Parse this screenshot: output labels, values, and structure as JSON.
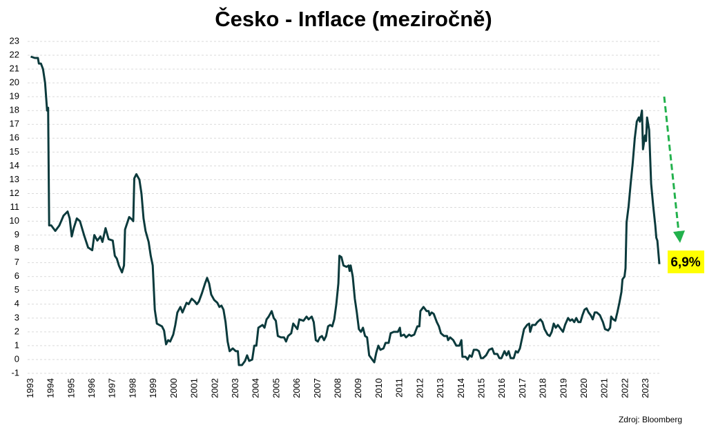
{
  "chart_data": {
    "type": "line",
    "title": "Česko - Inflace (meziročně)",
    "source": "Zdroj: Bloomberg",
    "annotation": "6,9%",
    "x": [
      1993.0,
      1993.2,
      1993.35,
      1993.4,
      1993.5,
      1993.6,
      1993.7,
      1993.8,
      1993.85,
      1993.9,
      1994.0,
      1994.2,
      1994.4,
      1994.6,
      1994.8,
      1994.9,
      1995.0,
      1995.1,
      1995.25,
      1995.4,
      1995.6,
      1995.8,
      1996.0,
      1996.1,
      1996.25,
      1996.4,
      1996.5,
      1996.65,
      1996.8,
      1997.0,
      1997.1,
      1997.2,
      1997.3,
      1997.45,
      1997.55,
      1997.6,
      1997.8,
      1997.95,
      1998.0,
      1998.05,
      1998.15,
      1998.3,
      1998.4,
      1998.5,
      1998.6,
      1998.75,
      1998.85,
      1998.95,
      1999.05,
      1999.15,
      1999.4,
      1999.5,
      1999.6,
      1999.7,
      1999.8,
      1999.95,
      2000.05,
      2000.15,
      2000.3,
      2000.4,
      2000.6,
      2000.7,
      2000.85,
      2001.0,
      2001.1,
      2001.2,
      2001.35,
      2001.5,
      2001.6,
      2001.7,
      2001.8,
      2001.95,
      2002.1,
      2002.2,
      2002.3,
      2002.4,
      2002.5,
      2002.6,
      2002.7,
      2002.85,
      2003.0,
      2003.1,
      2003.15,
      2003.3,
      2003.45,
      2003.55,
      2003.65,
      2003.8,
      2003.9,
      2004.0,
      2004.1,
      2004.3,
      2004.4,
      2004.5,
      2004.6,
      2004.75,
      2004.85,
      2004.95,
      2005.05,
      2005.2,
      2005.35,
      2005.45,
      2005.55,
      2005.7,
      2005.8,
      2005.9,
      2006.0,
      2006.1,
      2006.3,
      2006.45,
      2006.55,
      2006.7,
      2006.8,
      2006.9,
      2007.0,
      2007.1,
      2007.2,
      2007.3,
      2007.4,
      2007.5,
      2007.6,
      2007.7,
      2007.8,
      2007.9,
      2008.0,
      2008.05,
      2008.15,
      2008.25,
      2008.4,
      2008.5,
      2008.55,
      2008.6,
      2008.7,
      2008.8,
      2008.9,
      2009.0,
      2009.1,
      2009.2,
      2009.3,
      2009.4,
      2009.5,
      2009.65,
      2009.75,
      2009.85,
      2009.95,
      2010.05,
      2010.2,
      2010.3,
      2010.45,
      2010.55,
      2010.7,
      2010.9,
      2011.0,
      2011.05,
      2011.2,
      2011.3,
      2011.45,
      2011.55,
      2011.7,
      2011.85,
      2011.95,
      2012.0,
      2012.15,
      2012.3,
      2012.4,
      2012.45,
      2012.55,
      2012.65,
      2012.8,
      2012.9,
      2013.0,
      2013.15,
      2013.3,
      2013.35,
      2013.45,
      2013.6,
      2013.75,
      2013.9,
      2014.0,
      2014.05,
      2014.2,
      2014.3,
      2014.4,
      2014.5,
      2014.6,
      2014.75,
      2014.85,
      2014.95,
      2015.05,
      2015.2,
      2015.35,
      2015.5,
      2015.6,
      2015.75,
      2015.85,
      2015.95,
      2016.1,
      2016.2,
      2016.3,
      2016.4,
      2016.55,
      2016.65,
      2016.75,
      2016.85,
      2016.95,
      2017.05,
      2017.2,
      2017.3,
      2017.35,
      2017.45,
      2017.6,
      2017.7,
      2017.85,
      2017.95,
      2018.05,
      2018.2,
      2018.3,
      2018.4,
      2018.5,
      2018.6,
      2018.7,
      2018.85,
      2018.95,
      2019.05,
      2019.2,
      2019.3,
      2019.4,
      2019.5,
      2019.6,
      2019.7,
      2019.8,
      2019.9,
      2020.0,
      2020.1,
      2020.2,
      2020.3,
      2020.4,
      2020.5,
      2020.6,
      2020.75,
      2020.9,
      2021.0,
      2021.15,
      2021.25,
      2021.3,
      2021.4,
      2021.5,
      2021.6,
      2021.7,
      2021.8,
      2021.85,
      2021.95,
      2022.0,
      2022.05,
      2022.15,
      2022.25,
      2022.35,
      2022.45,
      2022.55,
      2022.65,
      2022.7,
      2022.8,
      2022.85,
      2022.95,
      2023.0,
      2023.05,
      2023.15,
      2023.25,
      2023.35,
      2023.45,
      2023.5,
      2023.55,
      2023.65
    ],
    "series": [
      {
        "color": "#0b3a3c",
        "values": [
          21.9,
          21.8,
          21.8,
          21.4,
          21.4,
          21.0,
          20.0,
          18.0,
          18.2,
          9.7,
          9.7,
          9.3,
          9.7,
          10.4,
          10.7,
          10.2,
          8.9,
          9.5,
          10.2,
          10.0,
          9.0,
          8.1,
          7.9,
          9.0,
          8.6,
          8.9,
          8.5,
          9.5,
          8.7,
          8.6,
          7.5,
          7.3,
          6.8,
          6.3,
          6.8,
          9.4,
          10.3,
          10.1,
          10.0,
          13.1,
          13.4,
          13.0,
          12.0,
          10.2,
          9.3,
          8.5,
          7.5,
          6.8,
          3.6,
          2.6,
          2.4,
          2.1,
          1.1,
          1.4,
          1.3,
          1.8,
          2.5,
          3.4,
          3.8,
          3.4,
          4.1,
          4.0,
          4.4,
          4.2,
          4.0,
          4.2,
          4.8,
          5.5,
          5.9,
          5.5,
          4.7,
          4.3,
          4.1,
          3.8,
          3.9,
          3.6,
          2.7,
          1.3,
          0.6,
          0.8,
          0.6,
          0.6,
          -0.4,
          -0.4,
          -0.1,
          0.3,
          -0.1,
          0.0,
          1.0,
          1.0,
          2.3,
          2.5,
          2.3,
          2.9,
          3.1,
          3.5,
          3.0,
          2.8,
          1.7,
          1.6,
          1.6,
          1.3,
          1.7,
          1.9,
          2.6,
          2.4,
          2.2,
          2.9,
          2.8,
          3.1,
          2.9,
          3.1,
          2.7,
          1.4,
          1.3,
          1.6,
          1.7,
          1.4,
          1.7,
          2.4,
          2.5,
          2.4,
          2.9,
          4.0,
          5.5,
          7.5,
          7.4,
          6.8,
          6.7,
          6.8,
          6.4,
          6.8,
          6.0,
          4.4,
          3.4,
          2.2,
          2.0,
          2.3,
          1.7,
          1.6,
          0.3,
          0.0,
          -0.2,
          0.5,
          1.0,
          0.7,
          0.8,
          1.2,
          1.2,
          1.9,
          2.0,
          2.0,
          2.3,
          1.7,
          1.8,
          1.6,
          1.8,
          1.7,
          1.8,
          2.4,
          2.4,
          3.5,
          3.8,
          3.5,
          3.5,
          3.2,
          3.4,
          3.3,
          2.7,
          2.4,
          1.9,
          1.7,
          1.7,
          1.4,
          1.6,
          1.4,
          1.0,
          1.0,
          1.4,
          0.2,
          0.2,
          0.0,
          0.3,
          0.2,
          0.7,
          0.7,
          0.6,
          0.1,
          0.1,
          0.3,
          0.7,
          0.8,
          0.4,
          0.4,
          0.1,
          0.1,
          0.6,
          0.3,
          0.6,
          0.1,
          0.1,
          0.6,
          0.5,
          0.8,
          1.5,
          2.2,
          2.5,
          2.6,
          2.0,
          2.5,
          2.5,
          2.7,
          2.9,
          2.7,
          2.2,
          1.8,
          1.7,
          2.0,
          2.6,
          2.3,
          2.5,
          2.2,
          2.0,
          2.5,
          3.0,
          2.8,
          2.9,
          2.7,
          3.0,
          2.7,
          2.7,
          3.2,
          3.6,
          3.7,
          3.4,
          3.2,
          2.9,
          3.4,
          3.4,
          3.2,
          2.7,
          2.2,
          2.1,
          2.3,
          3.1,
          2.9,
          2.8,
          3.4,
          4.1,
          4.9,
          5.8,
          6.0,
          6.6,
          9.9,
          11.1,
          12.7,
          14.2,
          16.0,
          17.2,
          17.5,
          17.2,
          18.0,
          15.2,
          16.2,
          15.8,
          17.5,
          16.6,
          12.7,
          11.1,
          9.7,
          8.8,
          8.6,
          6.9
        ]
      }
    ],
    "xlim": [
      1992.85,
      2023.75
    ],
    "xticks": [
      1993,
      1994,
      1995,
      1996,
      1997,
      1998,
      1999,
      2000,
      2001,
      2002,
      2003,
      2004,
      2005,
      2006,
      2007,
      2008,
      2009,
      2010,
      2011,
      2012,
      2013,
      2014,
      2015,
      2016,
      2017,
      2018,
      2019,
      2020,
      2021,
      2022,
      2023
    ],
    "ylim": [
      -1,
      23
    ],
    "yticks": [
      -1,
      0,
      1,
      2,
      3,
      4,
      5,
      6,
      7,
      8,
      9,
      10,
      11,
      12,
      13,
      14,
      15,
      16,
      17,
      18,
      19,
      20,
      21,
      22,
      23
    ],
    "grid": true
  }
}
